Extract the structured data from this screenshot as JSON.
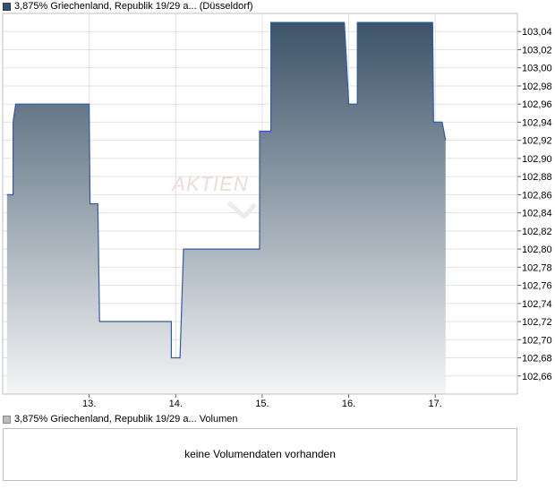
{
  "price_legend": "3,875% Griechenland, Republik 19/29 a... (Düsseldorf)",
  "volume_legend": "3,875% Griechenland, Republik 19/29 a... Volumen",
  "watermark": "AKTIEN",
  "volume_message": "keine Volumendaten vorhanden",
  "colors": {
    "line": "#2f5aa8",
    "fill_top": "#3c5368",
    "fill_bottom": "#f4f5f6",
    "grid": "#e2e2e2",
    "frame": "#bfbfbf"
  },
  "chart_data": {
    "type": "area",
    "title": "",
    "xlabel": "",
    "ylabel": "",
    "x_ticks": [
      "13.",
      "14.",
      "15.",
      "16.",
      "17."
    ],
    "ylim": [
      102.64,
      103.06
    ],
    "y_ticks": [
      "102,66",
      "102,68",
      "102,70",
      "102,72",
      "102,74",
      "102,76",
      "102,78",
      "102,80",
      "102,82",
      "102,84",
      "102,86",
      "102,88",
      "102,90",
      "102,92",
      "102,94",
      "102,96",
      "102,98",
      "103,00",
      "103,02",
      "103,04"
    ],
    "y_axis_position": "right",
    "grid": true,
    "series": [
      {
        "step": true,
        "points": [
          [
            12.05,
            102.86
          ],
          [
            12.12,
            102.86
          ],
          [
            12.12,
            102.94
          ],
          [
            12.15,
            102.96
          ],
          [
            13.0,
            102.96
          ],
          [
            13.01,
            102.85
          ],
          [
            13.1,
            102.85
          ],
          [
            13.12,
            102.72
          ],
          [
            13.95,
            102.72
          ],
          [
            13.95,
            102.68
          ],
          [
            14.05,
            102.68
          ],
          [
            14.09,
            102.8
          ],
          [
            14.97,
            102.8
          ],
          [
            14.97,
            102.93
          ],
          [
            15.1,
            102.93
          ],
          [
            15.1,
            103.05
          ],
          [
            15.95,
            103.05
          ],
          [
            16.0,
            102.96
          ],
          [
            16.1,
            102.96
          ],
          [
            16.1,
            103.05
          ],
          [
            16.97,
            103.05
          ],
          [
            16.98,
            102.94
          ],
          [
            17.08,
            102.94
          ],
          [
            17.12,
            102.92
          ]
        ]
      }
    ]
  }
}
